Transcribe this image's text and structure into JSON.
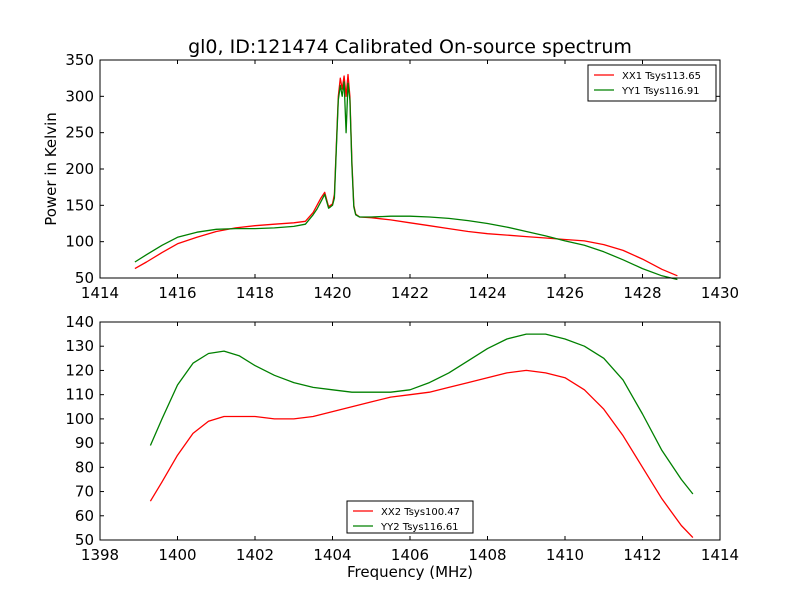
{
  "title": "gl0, ID:121474 Calibrated On-source spectrum",
  "chart_data": [
    {
      "type": "line",
      "ylabel": "Power in Kelvin",
      "xlabel": "",
      "xlim": [
        1414,
        1430
      ],
      "ylim": [
        50,
        350
      ],
      "xticks": [
        1414,
        1416,
        1418,
        1420,
        1422,
        1424,
        1426,
        1428,
        1430
      ],
      "yticks": [
        50,
        100,
        150,
        200,
        250,
        300,
        350
      ],
      "legend_position": "top-right",
      "series": [
        {
          "name": "XX1 Tsys113.65",
          "color": "#ff0000",
          "x": [
            1414.9,
            1415.2,
            1415.6,
            1416.0,
            1416.5,
            1417.0,
            1417.5,
            1418.0,
            1418.5,
            1419.0,
            1419.3,
            1419.5,
            1419.6,
            1419.7,
            1419.8,
            1419.9,
            1419.95,
            1420.0,
            1420.05,
            1420.1,
            1420.15,
            1420.2,
            1420.25,
            1420.3,
            1420.35,
            1420.4,
            1420.45,
            1420.5,
            1420.55,
            1420.6,
            1420.7,
            1421.0,
            1421.5,
            1422.0,
            1422.5,
            1423.0,
            1423.5,
            1424.0,
            1424.5,
            1425.0,
            1425.5,
            1426.0,
            1426.5,
            1427.0,
            1427.5,
            1428.0,
            1428.5,
            1428.9
          ],
          "y": [
            63,
            72,
            85,
            97,
            106,
            114,
            119,
            122,
            124,
            126,
            128,
            140,
            150,
            160,
            168,
            148,
            150,
            152,
            165,
            235,
            300,
            325,
            310,
            328,
            300,
            330,
            300,
            210,
            150,
            138,
            134,
            133,
            130,
            126,
            122,
            118,
            114,
            111,
            109,
            107,
            105,
            103,
            101,
            96,
            88,
            76,
            62,
            53
          ]
        },
        {
          "name": "YY1 Tsys116.91",
          "color": "#008000",
          "x": [
            1414.9,
            1415.2,
            1415.6,
            1416.0,
            1416.5,
            1417.0,
            1417.5,
            1418.0,
            1418.5,
            1419.0,
            1419.3,
            1419.5,
            1419.6,
            1419.7,
            1419.8,
            1419.9,
            1419.95,
            1420.0,
            1420.05,
            1420.1,
            1420.15,
            1420.2,
            1420.25,
            1420.3,
            1420.35,
            1420.4,
            1420.45,
            1420.5,
            1420.55,
            1420.6,
            1420.7,
            1421.0,
            1421.5,
            1422.0,
            1422.5,
            1423.0,
            1423.5,
            1424.0,
            1424.5,
            1425.0,
            1425.5,
            1426.0,
            1426.5,
            1427.0,
            1427.5,
            1428.0,
            1428.5,
            1428.9
          ],
          "y": [
            72,
            82,
            95,
            106,
            113,
            117,
            118,
            118,
            119,
            121,
            124,
            137,
            145,
            155,
            165,
            146,
            148,
            150,
            160,
            230,
            295,
            315,
            300,
            320,
            250,
            318,
            295,
            205,
            148,
            137,
            134,
            134,
            135,
            135,
            134,
            132,
            129,
            125,
            120,
            114,
            108,
            101,
            95,
            86,
            75,
            63,
            53,
            48
          ]
        }
      ]
    },
    {
      "type": "line",
      "ylabel": "",
      "xlabel": "Frequency (MHz)",
      "xlim": [
        1398,
        1414
      ],
      "ylim": [
        50,
        140
      ],
      "xticks": [
        1398,
        1400,
        1402,
        1404,
        1406,
        1408,
        1410,
        1412,
        1414
      ],
      "yticks": [
        50,
        60,
        70,
        80,
        90,
        100,
        110,
        120,
        130,
        140
      ],
      "legend_position": "bottom-center",
      "series": [
        {
          "name": "XX2 Tsys100.47",
          "color": "#ff0000",
          "x": [
            1399.3,
            1399.6,
            1400.0,
            1400.4,
            1400.8,
            1401.2,
            1401.6,
            1402.0,
            1402.5,
            1403.0,
            1403.5,
            1404.0,
            1404.5,
            1405.0,
            1405.5,
            1406.0,
            1406.5,
            1407.0,
            1407.5,
            1408.0,
            1408.5,
            1409.0,
            1409.5,
            1410.0,
            1410.5,
            1411.0,
            1411.5,
            1412.0,
            1412.5,
            1413.0,
            1413.3
          ],
          "y": [
            66,
            74,
            85,
            94,
            99,
            101,
            101,
            101,
            100,
            100,
            101,
            103,
            105,
            107,
            109,
            110,
            111,
            113,
            115,
            117,
            119,
            120,
            119,
            117,
            112,
            104,
            93,
            80,
            67,
            56,
            51
          ]
        },
        {
          "name": "YY2 Tsys116.61",
          "color": "#008000",
          "x": [
            1399.3,
            1399.6,
            1400.0,
            1400.4,
            1400.8,
            1401.2,
            1401.6,
            1402.0,
            1402.5,
            1403.0,
            1403.5,
            1404.0,
            1404.5,
            1405.0,
            1405.5,
            1406.0,
            1406.5,
            1407.0,
            1407.5,
            1408.0,
            1408.5,
            1409.0,
            1409.5,
            1410.0,
            1410.5,
            1411.0,
            1411.5,
            1412.0,
            1412.5,
            1413.0,
            1413.3
          ],
          "y": [
            89,
            100,
            114,
            123,
            127,
            128,
            126,
            122,
            118,
            115,
            113,
            112,
            111,
            111,
            111,
            112,
            115,
            119,
            124,
            129,
            133,
            135,
            135,
            133,
            130,
            125,
            116,
            102,
            87,
            75,
            69
          ]
        }
      ]
    }
  ]
}
